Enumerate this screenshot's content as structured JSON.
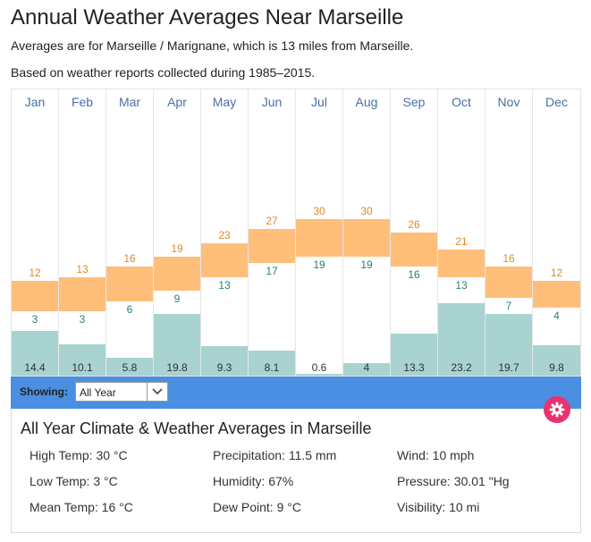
{
  "page": {
    "title": "Annual Weather Averages Near Marseille",
    "subtitle1": "Averages are for Marseille / Marignane, which is 13 miles from Marseille.",
    "subtitle2": "Based on weather reports collected during 1985–2015."
  },
  "chart_data": {
    "type": "bar",
    "categories": [
      "Jan",
      "Feb",
      "Mar",
      "Apr",
      "May",
      "Jun",
      "Jul",
      "Aug",
      "Sep",
      "Oct",
      "Nov",
      "Dec"
    ],
    "series": [
      {
        "values": [
          12,
          13,
          16,
          19,
          23,
          27,
          30,
          30,
          26,
          21,
          16,
          12
        ]
      },
      {
        "values": [
          3,
          3,
          6,
          9,
          13,
          17,
          19,
          19,
          16,
          13,
          7,
          4
        ]
      },
      {
        "values": [
          14.4,
          10.1,
          5.8,
          19.8,
          9.3,
          8.1,
          0.6,
          4,
          13.3,
          23.2,
          19.7,
          9.8
        ]
      }
    ],
    "precip_labels": [
      "14.4",
      "10.1",
      "5.8",
      "19.8",
      "9.3",
      "8.1",
      "0.6",
      "4",
      "13.3",
      "23.2",
      "19.7",
      "9.8"
    ],
    "colors": {
      "temp": "#ffbf7a",
      "high_text": "#e08a2c",
      "low_text": "#2f7c7c",
      "precip": "#a8d3d1"
    }
  },
  "controls": {
    "showing_label": "Showing:",
    "selected": "All Year",
    "settings_icon": "gear-icon"
  },
  "summary": {
    "title": "All Year Climate & Weather Averages in Marseille",
    "stats": [
      "High Temp: 30 °C",
      "Precipitation: 11.5 mm",
      "Wind: 10 mph",
      "Low Temp: 3 °C",
      "Humidity: 67%",
      "Pressure: 30.01 \"Hg",
      "Mean Temp: 16 °C",
      "Dew Point: 9 °C",
      "Visibility: 10 mi"
    ]
  }
}
